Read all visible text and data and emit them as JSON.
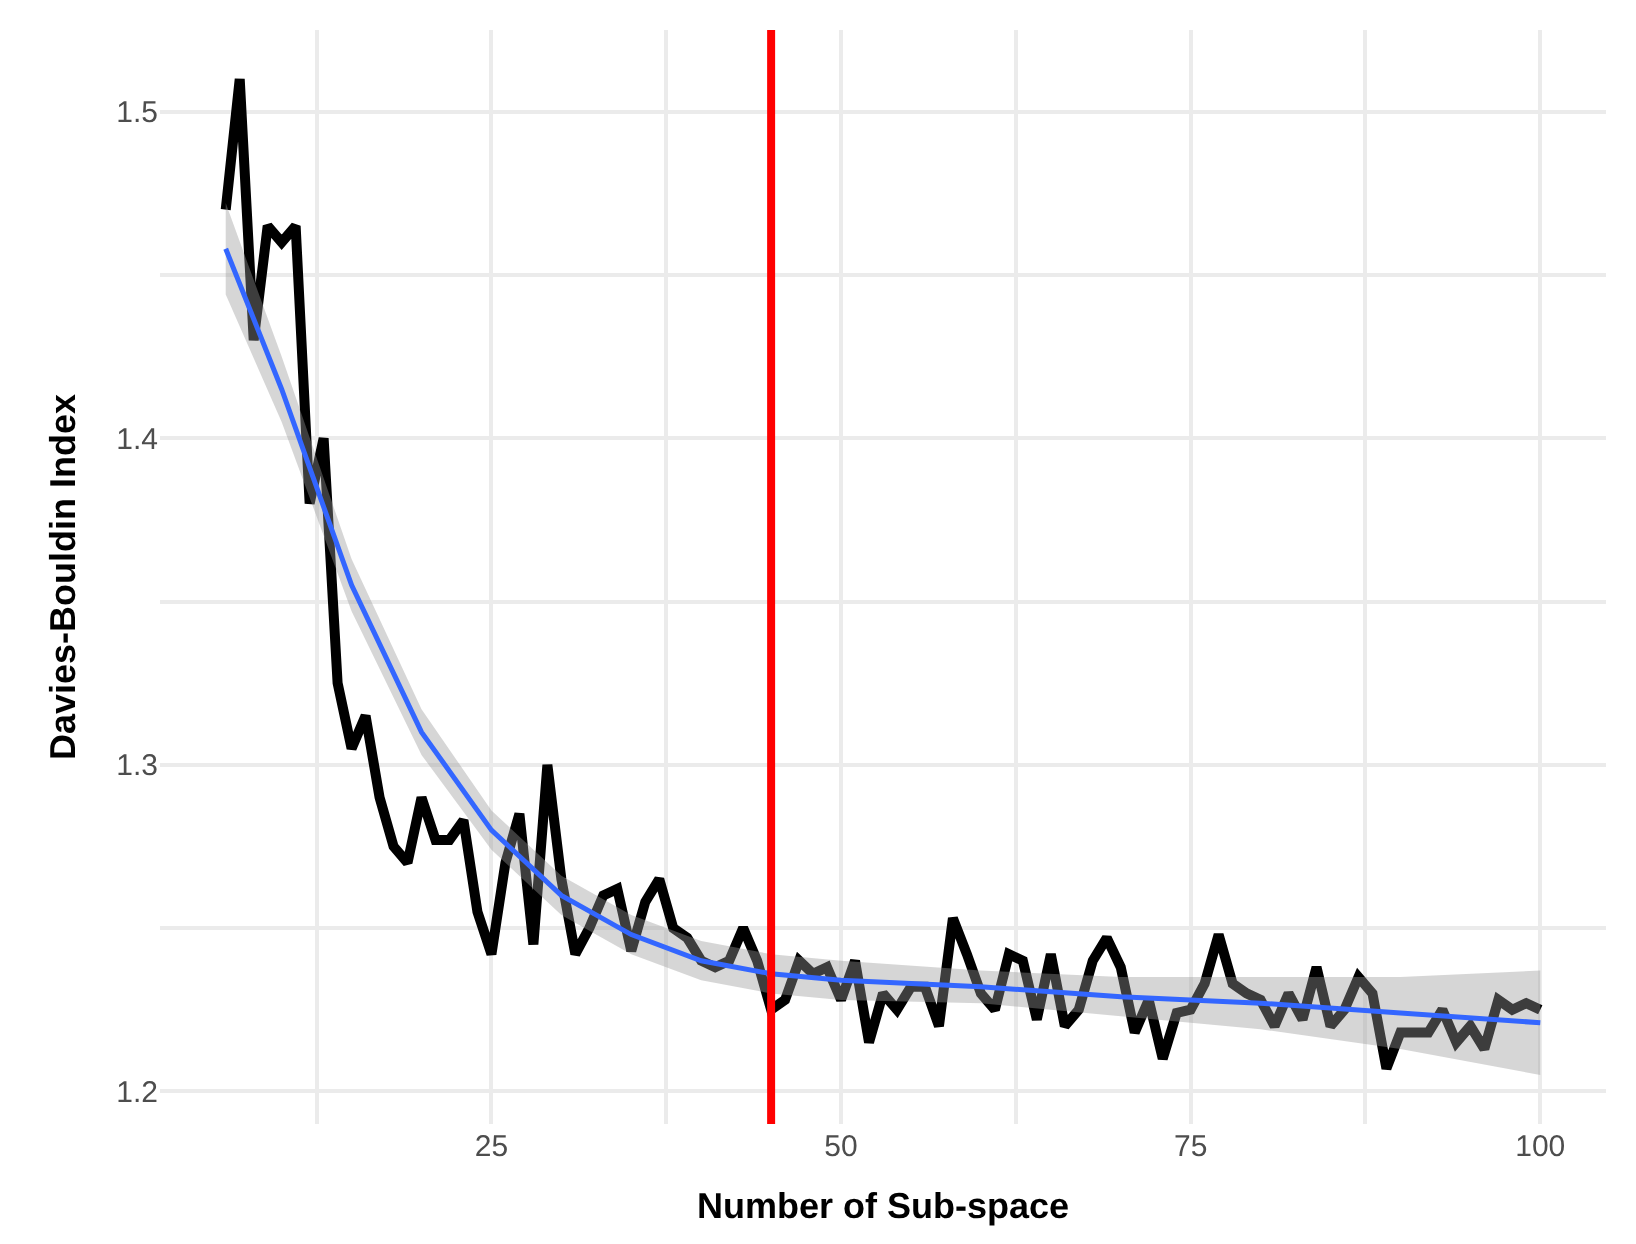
{
  "chart_data": {
    "type": "line",
    "xlabel": "Number of Sub-space",
    "ylabel": "Davies-Bouldin Index",
    "xlim": [
      1.3,
      104.7
    ],
    "xticks": [
      {
        "value": 12.5,
        "label": null
      },
      25,
      {
        "value": 37.5,
        "label": null
      },
      50,
      {
        "value": 62.5,
        "label": null
      },
      75,
      {
        "value": 87.5,
        "label": null
      },
      100
    ],
    "ylim": [
      1.19,
      1.525
    ],
    "yticks": [
      1.2,
      {
        "value": 1.25,
        "label": null
      },
      1.3,
      {
        "value": 1.35,
        "label": null
      },
      1.4,
      {
        "value": 1.45,
        "label": null
      },
      1.5
    ],
    "grid": true,
    "marker": "none",
    "series": [
      {
        "color": "#000000",
        "x": [
          6,
          7,
          8,
          9,
          10,
          11,
          12,
          13,
          14,
          15,
          16,
          17,
          18,
          19,
          20,
          21,
          22,
          23,
          24,
          25,
          26,
          27,
          28,
          29,
          30,
          31,
          32,
          33,
          34,
          35,
          36,
          37,
          38,
          39,
          40,
          41,
          42,
          43,
          44,
          45,
          46,
          47,
          48,
          49,
          50,
          51,
          52,
          53,
          54,
          55,
          56,
          57,
          58,
          59,
          60,
          61,
          62,
          63,
          64,
          65,
          66,
          67,
          68,
          69,
          70,
          71,
          72,
          73,
          74,
          75,
          76,
          77,
          78,
          79,
          80,
          81,
          82,
          83,
          84,
          85,
          86,
          87,
          88,
          89,
          90,
          91,
          92,
          93,
          94,
          95,
          96,
          97,
          98,
          99,
          100
        ],
        "values": [
          1.47,
          1.51,
          1.43,
          1.465,
          1.46,
          1.465,
          1.38,
          1.4,
          1.325,
          1.305,
          1.315,
          1.29,
          1.275,
          1.27,
          1.29,
          1.277,
          1.277,
          1.283,
          1.255,
          1.242,
          1.27,
          1.285,
          1.245,
          1.3,
          1.265,
          1.242,
          1.25,
          1.26,
          1.262,
          1.243,
          1.258,
          1.265,
          1.25,
          1.247,
          1.24,
          1.238,
          1.24,
          1.25,
          1.24,
          1.225,
          1.228,
          1.24,
          1.236,
          1.238,
          1.228,
          1.24,
          1.215,
          1.23,
          1.225,
          1.232,
          1.232,
          1.22,
          1.253,
          1.242,
          1.23,
          1.225,
          1.242,
          1.24,
          1.222,
          1.242,
          1.22,
          1.225,
          1.24,
          1.247,
          1.238,
          1.218,
          1.228,
          1.21,
          1.224,
          1.225,
          1.233,
          1.248,
          1.233,
          1.23,
          1.228,
          1.22,
          1.23,
          1.222,
          1.238,
          1.22,
          1.225,
          1.235,
          1.23,
          1.207,
          1.218,
          1.218,
          1.218,
          1.225,
          1.215,
          1.22,
          1.213,
          1.228,
          1.225,
          1.227,
          1.225
        ]
      },
      {
        "color": "#3366ff",
        "x": [
          6,
          10,
          15,
          20,
          25,
          30,
          35,
          40,
          45,
          50,
          60,
          70,
          80,
          90,
          100
        ],
        "values": [
          1.458,
          1.415,
          1.355,
          1.31,
          1.28,
          1.26,
          1.248,
          1.24,
          1.236,
          1.234,
          1.232,
          1.229,
          1.227,
          1.224,
          1.221
        ],
        "lower": [
          1.444,
          1.405,
          1.347,
          1.303,
          1.274,
          1.254,
          1.242,
          1.234,
          1.23,
          1.228,
          1.227,
          1.223,
          1.219,
          1.213,
          1.205
        ],
        "upper": [
          1.472,
          1.425,
          1.363,
          1.317,
          1.286,
          1.266,
          1.254,
          1.246,
          1.242,
          1.24,
          1.237,
          1.235,
          1.235,
          1.235,
          1.237
        ]
      }
    ],
    "ref_lines": [
      {
        "axis": "x",
        "value": 45,
        "color": "#ff0000"
      }
    ]
  }
}
